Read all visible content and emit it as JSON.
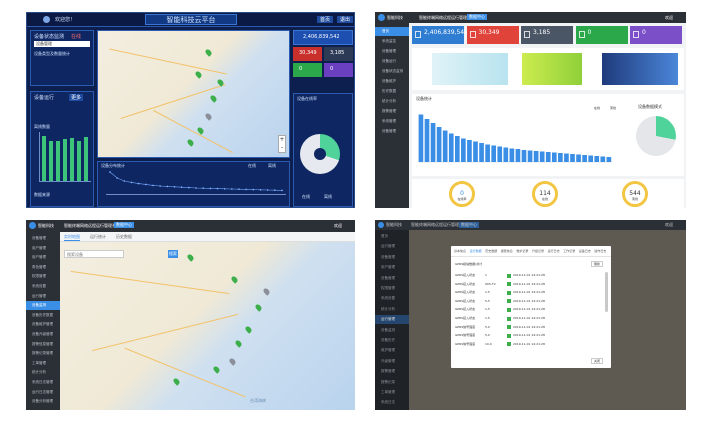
{
  "q1": {
    "title": "智能科技云平台",
    "header_left": "欢迎您！",
    "header_buttons": [
      "首页",
      "退出"
    ],
    "left_top_title": "设备状态监测",
    "left_top_badge": "在线",
    "left_top_rows": [
      "设备管理",
      "设备类型及数量统计"
    ],
    "left_bottom_title": "设备运行",
    "left_bottom_tabs": [
      "更多"
    ],
    "left_chart_label": "离线数量",
    "left_chart_footer": "数据来源",
    "bars_left": [
      45,
      40,
      40,
      42,
      43,
      40,
      44
    ],
    "stat1": "2,406,839,542",
    "stat2": "30,349",
    "stat3": "3,185",
    "stat4": "0",
    "stat5": "0",
    "pie_title": "设备在线率",
    "pie_legend": [
      "在线",
      "离线"
    ],
    "bottom_title": "设备分布统计",
    "bottom_legend": [
      "在线",
      "离线"
    ],
    "tooltip": [
      "在线:1",
      "离线:0"
    ],
    "bottom_bars": [
      100,
      70,
      55,
      48,
      42,
      38,
      33,
      30,
      28,
      26,
      24,
      22,
      20,
      19,
      18,
      17,
      16,
      15,
      14,
      13,
      12,
      11,
      10,
      9,
      8
    ]
  },
  "q2": {
    "logo": "智能科技",
    "title": "智能终端网络远程运行管理系统",
    "tab": "数据中心",
    "user": "欢迎",
    "stats": [
      {
        "value": "2,406,839,542",
        "label": "",
        "color": "#2f7dd3"
      },
      {
        "value": "30,349",
        "label": "",
        "color": "#e0433a"
      },
      {
        "value": "3,185",
        "label": "",
        "color": "#4a5566"
      },
      {
        "value": "0",
        "label": "",
        "color": "#2aa84a"
      },
      {
        "value": "0",
        "label": "",
        "color": "#7b4fc8"
      }
    ],
    "side": [
      "首页",
      "系统监控",
      "设备管理",
      "设备运行",
      "设备状态监测",
      "设备维护",
      "历史数据",
      "统计分析",
      "报警管理",
      "系统管理",
      "设备管理"
    ],
    "chart_title": "设备统计",
    "chart_legend": [
      "在线",
      "离线"
    ],
    "bars": [
      95,
      86,
      78,
      70,
      63,
      57,
      52,
      47,
      44,
      41,
      38,
      35,
      33,
      31,
      29,
      27,
      26,
      24,
      23,
      22,
      21,
      20,
      19,
      18,
      17,
      16,
      15,
      14,
      13,
      12,
      11,
      10
    ],
    "pie_title": "设备数据模式",
    "gauges": [
      {
        "value": "0",
        "label": "在线率"
      },
      {
        "value": "114",
        "label": "在线"
      },
      {
        "value": "544",
        "label": "离线"
      }
    ]
  },
  "q3": {
    "logo": "智能科技",
    "title": "智能终端网络远程运行管理系统",
    "tab": "数据中心",
    "user": "欢迎",
    "map_tabs": [
      "实时地图",
      "运行统计",
      "历史数据"
    ],
    "search_placeholder": "搜索设备",
    "search_button": "搜索",
    "side": [
      "设备管理",
      "用户管理",
      "用户管理",
      "角色管理",
      "权限管理",
      "系统设置",
      "运行管理",
      "设备监测",
      "设备历史数据",
      "设备维护管理",
      "设备升级管理",
      "报警信息管理",
      "报警记录管理",
      "工单管理",
      "统计分析",
      "系统日志管理",
      "运行日志管理",
      "设备分析管理"
    ],
    "side_active": 7,
    "sea_label": "台湾海峡"
  },
  "q4": {
    "logo": "智能科技",
    "title": "智能终端网络远程运行管理系统",
    "tab": "数据中心",
    "user": "欢迎",
    "side": [
      "首页",
      "运行管理",
      "设备管理",
      "用户管理",
      "设备管理",
      "权限管理",
      "系统设置",
      "统计分析",
      "运行管理",
      "设备监测",
      "设备历史",
      "维护管理",
      "升级管理",
      "报警管理",
      "报警记录",
      "工单管理",
      "系统日志"
    ],
    "modal_tabs": [
      "基本信息",
      "运行数据",
      "历史数据",
      "报警信息",
      "维护记录",
      "升级记录",
      "运行日志",
      "工作记录",
      "设备日志",
      "操作日志"
    ],
    "modal_header": "GPRS模块数据(共计",
    "modal_button": "刷新",
    "modal_footer": "关闭",
    "rows": [
      {
        "name": "GPRS接入状态",
        "value": "1",
        "time": "2019-11-01 14:21:28"
      },
      {
        "name": "GPRS接入状态",
        "value": "905,70",
        "time": "2019-11-01 14:21:28"
      },
      {
        "name": "GPRS接入状态",
        "value": "1,5",
        "time": "2019-11-01 14:21:28"
      },
      {
        "name": "GPRS接入状态",
        "value": "5,5",
        "time": "2019-11-01 14:21:28"
      },
      {
        "name": "GPRS接入状态",
        "value": "1,5",
        "time": "2019-11-01 14:21:28"
      },
      {
        "name": "GPRS接入状态",
        "value": "1,5",
        "time": "2019-11-01 14:21:28"
      },
      {
        "name": "GPRS信号强度",
        "value": "5,0",
        "time": "2019-11-01 14:21:28"
      },
      {
        "name": "GPRS信号强度",
        "value": "5,0",
        "time": "2019-11-01 14:21:28"
      },
      {
        "name": "GPRS信号强度",
        "value": "10,0",
        "time": "2019-11-01 14:21:28"
      }
    ]
  }
}
